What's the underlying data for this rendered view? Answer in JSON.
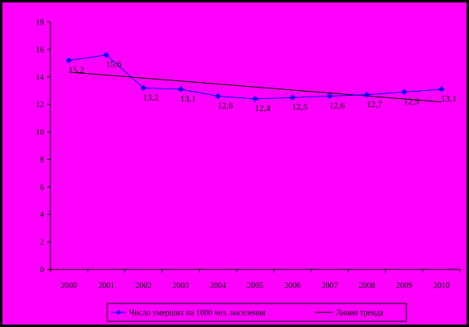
{
  "chart_data": {
    "type": "line",
    "title": "",
    "xlabel": "",
    "ylabel": "",
    "categories": [
      "2000",
      "2001",
      "2002",
      "2003",
      "2004",
      "2005",
      "2006",
      "2007",
      "2008",
      "2009",
      "2010"
    ],
    "ylim": [
      0,
      18
    ],
    "yticks": [
      0,
      2,
      4,
      6,
      8,
      10,
      12,
      14,
      16,
      18
    ],
    "grid": false,
    "legend_position": "bottom",
    "series": [
      {
        "name": "Число умерших на 1000 чел. населения",
        "values": [
          15.2,
          15.6,
          13.2,
          13.1,
          12.6,
          12.4,
          12.5,
          12.6,
          12.7,
          12.9,
          13.1
        ],
        "point_labels": [
          "15,2",
          "15,6",
          "13,2",
          "13,1",
          "12,6",
          "12,4",
          "12,5",
          "12,6",
          "12,7",
          "12,9",
          "13,1"
        ],
        "marker": "diamond",
        "color": "#0000ff"
      },
      {
        "name": "Линия тренда",
        "type": "trendline",
        "color": "#000000"
      }
    ],
    "colors": {
      "background": "#ff00ff",
      "axis": "#000000",
      "frame": "#000000"
    }
  }
}
